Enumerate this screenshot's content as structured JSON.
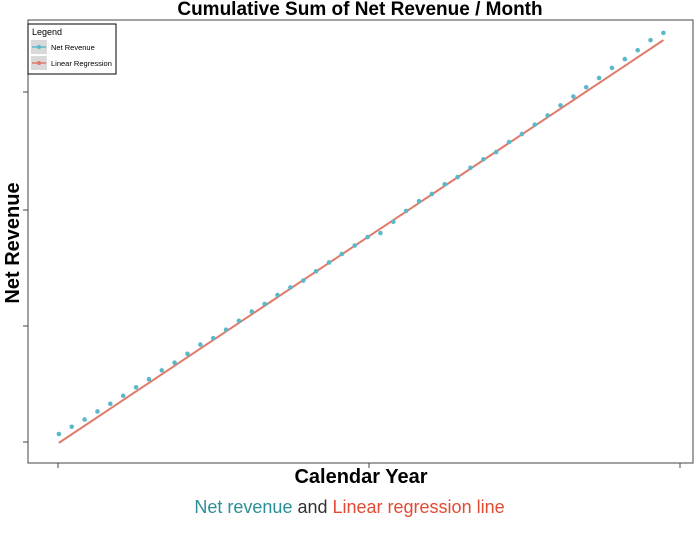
{
  "chart_data": {
    "type": "scatter",
    "title": "Cumulative Sum of Net Revenue / Month",
    "xlabel": "Calendar Year",
    "ylabel": "Net Revenue",
    "x_ticks_labeled": false,
    "y_ticks_labeled": false,
    "grid": false,
    "legend": {
      "title": "Legend",
      "placement": "top-left",
      "entries": [
        "Net Revenue",
        "Linear Regression"
      ]
    },
    "series": [
      {
        "name": "Net Revenue",
        "kind": "points",
        "color": "#5bb8c9",
        "x": [
          1,
          2,
          3,
          4,
          5,
          6,
          7,
          8,
          9,
          10,
          11,
          12,
          13,
          14,
          15,
          16,
          17,
          18,
          19,
          20,
          21,
          22,
          23,
          24,
          25,
          26,
          27,
          28,
          29,
          30,
          31,
          32,
          33,
          34,
          35,
          36,
          37,
          38,
          39,
          40,
          41,
          42,
          43,
          44,
          45,
          46,
          47,
          48
        ],
        "values": [
          0.022,
          0.04,
          0.058,
          0.078,
          0.097,
          0.117,
          0.138,
          0.158,
          0.18,
          0.199,
          0.221,
          0.244,
          0.26,
          0.281,
          0.303,
          0.326,
          0.345,
          0.367,
          0.386,
          0.403,
          0.426,
          0.448,
          0.469,
          0.49,
          0.511,
          0.521,
          0.549,
          0.576,
          0.6,
          0.618,
          0.642,
          0.66,
          0.683,
          0.704,
          0.722,
          0.747,
          0.767,
          0.79,
          0.813,
          0.838,
          0.86,
          0.883,
          0.906,
          0.931,
          0.953,
          0.975,
          1.0,
          1.018
        ]
      },
      {
        "name": "Linear Regression",
        "kind": "line",
        "color": "#e07a6a",
        "x": [
          1,
          48
        ],
        "values": [
          0.0,
          1.0
        ]
      }
    ],
    "xlim": [
      -1.4,
      50.3
    ],
    "ylim": [
      -0.05,
      1.05
    ]
  },
  "caption": {
    "part1": "Net revenue",
    "part2": " and ",
    "part3": "Linear regression line"
  },
  "colors": {
    "points": "#5bb8c9",
    "line": "#e07a6a",
    "caption_net": "#2a8f94",
    "caption_lr": "#e24a33"
  }
}
